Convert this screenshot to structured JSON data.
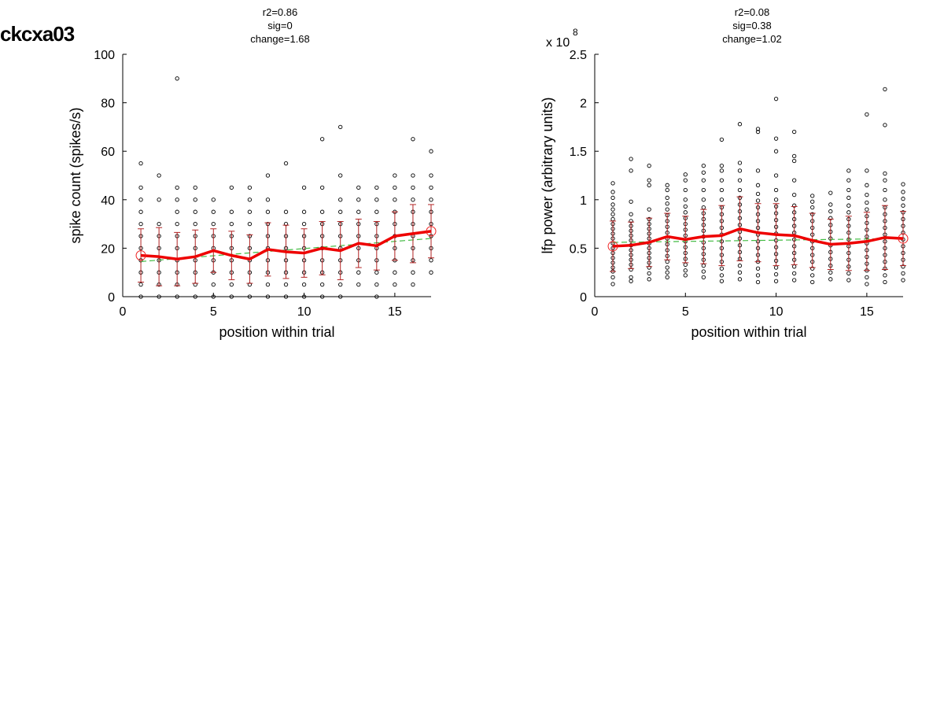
{
  "figure_title": "ckcxa03",
  "chart_data": [
    {
      "type": "scatter",
      "title_lines": [
        "r2=0.86",
        "sig=0",
        "change=1.68"
      ],
      "xlabel": "position within trial",
      "ylabel": "spike count (spikes/s)",
      "xlim": [
        0,
        17
      ],
      "ylim": [
        0,
        100
      ],
      "xticks": [
        0,
        5,
        10,
        15
      ],
      "yticks": [
        0,
        20,
        40,
        60,
        80,
        100
      ],
      "ytick_labels": [
        "0",
        "20",
        "40",
        "60",
        "80",
        "100"
      ],
      "exponent_label": "",
      "raw_points": [
        {
          "x": 1,
          "y": [
            0,
            5,
            10,
            15,
            20,
            25,
            30,
            35,
            40,
            45,
            55
          ]
        },
        {
          "x": 2,
          "y": [
            0,
            5,
            10,
            15,
            20,
            25,
            30,
            40,
            50
          ]
        },
        {
          "x": 3,
          "y": [
            0,
            5,
            10,
            15,
            20,
            25,
            30,
            35,
            40,
            45,
            90
          ]
        },
        {
          "x": 4,
          "y": [
            0,
            5,
            10,
            15,
            20,
            25,
            30,
            35,
            40,
            45
          ]
        },
        {
          "x": 5,
          "y": [
            0,
            5,
            10,
            15,
            20,
            25,
            30,
            35,
            40
          ]
        },
        {
          "x": 6,
          "y": [
            0,
            5,
            10,
            15,
            20,
            25,
            30,
            35,
            45
          ]
        },
        {
          "x": 7,
          "y": [
            0,
            5,
            10,
            15,
            20,
            25,
            30,
            35,
            40,
            45
          ]
        },
        {
          "x": 8,
          "y": [
            0,
            5,
            10,
            15,
            20,
            25,
            30,
            35,
            40,
            50
          ]
        },
        {
          "x": 9,
          "y": [
            0,
            5,
            10,
            15,
            20,
            25,
            30,
            35,
            55
          ]
        },
        {
          "x": 10,
          "y": [
            0,
            5,
            10,
            15,
            20,
            25,
            30,
            35,
            45
          ]
        },
        {
          "x": 11,
          "y": [
            0,
            5,
            10,
            15,
            20,
            25,
            30,
            35,
            45,
            65
          ]
        },
        {
          "x": 12,
          "y": [
            0,
            5,
            10,
            15,
            20,
            25,
            30,
            35,
            40,
            50,
            70
          ]
        },
        {
          "x": 13,
          "y": [
            5,
            10,
            15,
            20,
            25,
            30,
            35,
            40,
            45
          ]
        },
        {
          "x": 14,
          "y": [
            0,
            5,
            10,
            15,
            20,
            25,
            30,
            35,
            40,
            45
          ]
        },
        {
          "x": 15,
          "y": [
            5,
            10,
            15,
            20,
            25,
            30,
            35,
            40,
            45,
            50
          ]
        },
        {
          "x": 16,
          "y": [
            5,
            10,
            15,
            20,
            25,
            30,
            35,
            40,
            45,
            50,
            65
          ]
        },
        {
          "x": 17,
          "y": [
            10,
            15,
            20,
            25,
            30,
            35,
            40,
            45,
            50,
            60
          ]
        }
      ],
      "mean": [
        17,
        16.5,
        15.5,
        16.5,
        19,
        17,
        15.5,
        19.5,
        18.5,
        18,
        20,
        19,
        22,
        21,
        25,
        26,
        27
      ],
      "error": [
        11,
        12,
        11,
        11,
        9,
        10,
        10,
        11,
        11,
        10,
        11,
        12,
        10,
        10,
        10,
        12,
        11
      ],
      "fit": {
        "x": [
          1,
          17
        ],
        "y": [
          14.5,
          24
        ]
      }
    },
    {
      "type": "scatter",
      "title_lines": [
        "r2=0.08",
        "sig=0.38",
        "change=1.02"
      ],
      "xlabel": "position within trial",
      "ylabel": "lfp power (arbitrary units)",
      "xlim": [
        0,
        17
      ],
      "ylim": [
        0,
        2.5
      ],
      "xticks": [
        0,
        5,
        10,
        15
      ],
      "yticks": [
        0,
        0.5,
        1,
        1.5,
        2,
        2.5
      ],
      "ytick_labels": [
        "0",
        "0.5",
        "1",
        "1.5",
        "2",
        "2.5"
      ],
      "exponent_label": "x 10",
      "exponent_power": "8",
      "raw_points": [
        {
          "x": 1,
          "y": [
            0.13,
            0.2,
            0.26,
            0.3,
            0.35,
            0.4,
            0.45,
            0.5,
            0.55,
            0.6,
            0.65,
            0.7,
            0.75,
            0.8,
            0.85,
            0.9,
            0.95,
            1.02,
            1.08,
            1.17
          ]
        },
        {
          "x": 2,
          "y": [
            0.16,
            0.2,
            0.28,
            0.33,
            0.38,
            0.43,
            0.48,
            0.53,
            0.58,
            0.63,
            0.68,
            0.73,
            0.78,
            0.85,
            0.98,
            1.3,
            1.42
          ]
        },
        {
          "x": 3,
          "y": [
            0.18,
            0.24,
            0.3,
            0.35,
            0.4,
            0.45,
            0.5,
            0.55,
            0.6,
            0.65,
            0.7,
            0.75,
            0.8,
            0.9,
            1.15,
            1.2,
            1.35
          ]
        },
        {
          "x": 4,
          "y": [
            0.2,
            0.25,
            0.3,
            0.36,
            0.42,
            0.48,
            0.54,
            0.6,
            0.66,
            0.72,
            0.78,
            0.84,
            0.9,
            0.96,
            1.02,
            1.1,
            1.15
          ]
        },
        {
          "x": 5,
          "y": [
            0.22,
            0.27,
            0.33,
            0.39,
            0.45,
            0.51,
            0.57,
            0.63,
            0.69,
            0.75,
            0.81,
            0.87,
            0.93,
            1.0,
            1.1,
            1.2,
            1.26
          ]
        },
        {
          "x": 6,
          "y": [
            0.2,
            0.26,
            0.32,
            0.38,
            0.44,
            0.5,
            0.56,
            0.62,
            0.68,
            0.74,
            0.8,
            0.86,
            0.92,
            1.0,
            1.1,
            1.2,
            1.28,
            1.35
          ]
        },
        {
          "x": 7,
          "y": [
            0.16,
            0.22,
            0.29,
            0.36,
            0.43,
            0.5,
            0.57,
            0.64,
            0.71,
            0.78,
            0.85,
            0.92,
            1.0,
            1.1,
            1.2,
            1.3,
            1.35,
            1.62
          ]
        },
        {
          "x": 8,
          "y": [
            0.18,
            0.25,
            0.32,
            0.39,
            0.46,
            0.53,
            0.6,
            0.67,
            0.74,
            0.81,
            0.88,
            0.95,
            1.02,
            1.1,
            1.2,
            1.3,
            1.38,
            1.78
          ]
        },
        {
          "x": 9,
          "y": [
            0.15,
            0.22,
            0.29,
            0.36,
            0.43,
            0.5,
            0.57,
            0.64,
            0.71,
            0.78,
            0.85,
            0.92,
            0.99,
            1.06,
            1.15,
            1.3,
            1.7,
            1.73
          ]
        },
        {
          "x": 10,
          "y": [
            0.16,
            0.23,
            0.3,
            0.37,
            0.44,
            0.51,
            0.58,
            0.65,
            0.72,
            0.79,
            0.86,
            0.93,
            1.0,
            1.1,
            1.25,
            1.5,
            1.63,
            2.04
          ]
        },
        {
          "x": 11,
          "y": [
            0.17,
            0.24,
            0.31,
            0.38,
            0.45,
            0.52,
            0.59,
            0.66,
            0.73,
            0.8,
            0.87,
            0.94,
            1.05,
            1.2,
            1.4,
            1.45,
            1.7
          ]
        },
        {
          "x": 12,
          "y": [
            0.15,
            0.22,
            0.29,
            0.36,
            0.43,
            0.5,
            0.57,
            0.64,
            0.71,
            0.78,
            0.85,
            0.92,
            0.98,
            1.04
          ]
        },
        {
          "x": 13,
          "y": [
            0.18,
            0.25,
            0.32,
            0.39,
            0.46,
            0.53,
            0.6,
            0.67,
            0.74,
            0.81,
            0.88,
            0.95,
            1.07
          ]
        },
        {
          "x": 14,
          "y": [
            0.17,
            0.24,
            0.31,
            0.38,
            0.45,
            0.52,
            0.59,
            0.66,
            0.73,
            0.8,
            0.87,
            0.94,
            1.02,
            1.1,
            1.2,
            1.3
          ]
        },
        {
          "x": 15,
          "y": [
            0.13,
            0.2,
            0.27,
            0.34,
            0.41,
            0.48,
            0.55,
            0.62,
            0.69,
            0.76,
            0.83,
            0.9,
            0.97,
            1.05,
            1.15,
            1.3,
            1.88
          ]
        },
        {
          "x": 16,
          "y": [
            0.15,
            0.22,
            0.29,
            0.36,
            0.43,
            0.5,
            0.57,
            0.64,
            0.71,
            0.78,
            0.85,
            0.92,
            1.0,
            1.1,
            1.2,
            1.27,
            1.77,
            2.14
          ]
        },
        {
          "x": 17,
          "y": [
            0.17,
            0.24,
            0.31,
            0.38,
            0.45,
            0.52,
            0.59,
            0.66,
            0.73,
            0.8,
            0.87,
            0.94,
            1.01,
            1.08,
            1.16
          ]
        }
      ],
      "mean": [
        0.52,
        0.53,
        0.56,
        0.62,
        0.59,
        0.62,
        0.63,
        0.7,
        0.66,
        0.64,
        0.63,
        0.58,
        0.54,
        0.55,
        0.57,
        0.61,
        0.6
      ],
      "error": [
        0.26,
        0.24,
        0.25,
        0.24,
        0.24,
        0.28,
        0.31,
        0.33,
        0.3,
        0.32,
        0.3,
        0.28,
        0.26,
        0.28,
        0.3,
        0.33,
        0.28
      ],
      "fit": {
        "x": [
          1,
          17
        ],
        "y": [
          0.56,
          0.6
        ]
      }
    }
  ]
}
